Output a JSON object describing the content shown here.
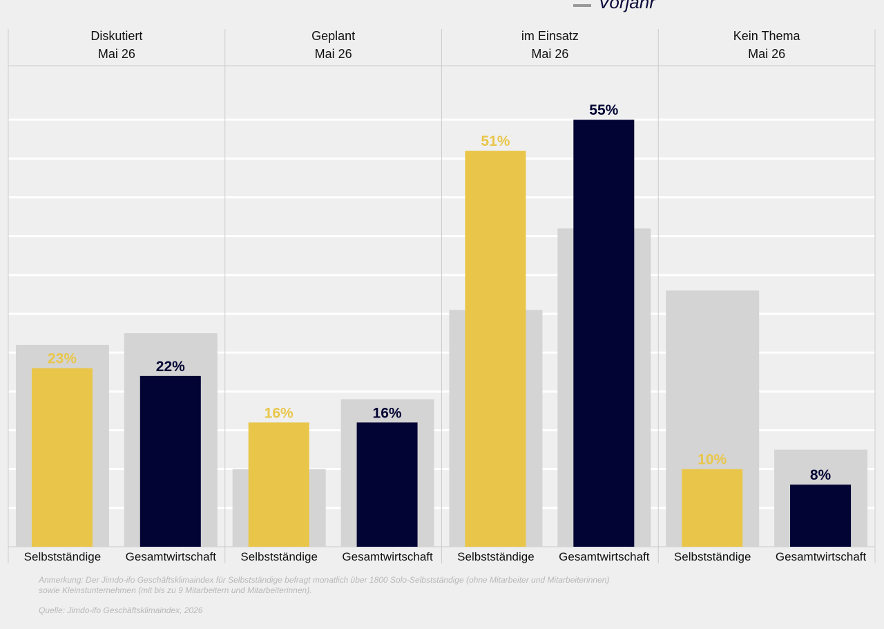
{
  "legend": {
    "previous_year_label": "Vorjahr"
  },
  "colors": {
    "selbststaendige": "#e9c649",
    "gesamtwirtschaft": "#020433",
    "vorjahr": "#d4d4d4",
    "background": "#efefef",
    "grid": "#ffffff"
  },
  "notes": {
    "line1": "Anmerkung: Der Jimdo-ifo Geschäftsklimaindex für Selbstständige befragt monatlich über 1800 Solo-Selbstständige (ohne Mitarbeiter und Mitarbeiterinnen)",
    "line2": "sowie Kleinstunternehmen (mit bis zu 9 Mitarbeitern und Mitarbeiterinnen).",
    "source": "Quelle: Jimdo-ifo Geschäftsklimaindex, 2026"
  },
  "chart_data": {
    "type": "bar",
    "ylim": [
      0,
      60
    ],
    "grid": true,
    "series_names": [
      "Selbstständige",
      "Gesamtwirtschaft"
    ],
    "panels": [
      {
        "title": "Diskutiert",
        "subtitle": "Mai 26",
        "bars": [
          {
            "category": "Selbstständige",
            "value": 23,
            "label": "23%",
            "previous": 26
          },
          {
            "category": "Gesamtwirtschaft",
            "value": 22,
            "label": "22%",
            "previous": 27.5
          }
        ]
      },
      {
        "title": "Geplant",
        "subtitle": "Mai 26",
        "bars": [
          {
            "category": "Selbstständige",
            "value": 16,
            "label": "16%",
            "previous": 10
          },
          {
            "category": "Gesamtwirtschaft",
            "value": 16,
            "label": "16%",
            "previous": 19
          }
        ]
      },
      {
        "title": "im Einsatz",
        "subtitle": "Mai 26",
        "bars": [
          {
            "category": "Selbstständige",
            "value": 51,
            "label": "51%",
            "previous": 30.5
          },
          {
            "category": "Gesamtwirtschaft",
            "value": 55,
            "label": "55%",
            "previous": 41
          }
        ]
      },
      {
        "title": "Kein Thema",
        "subtitle": "Mai 26",
        "bars": [
          {
            "category": "Selbstständige",
            "value": 10,
            "label": "10%",
            "previous": 33
          },
          {
            "category": "Gesamtwirtschaft",
            "value": 8,
            "label": "8%",
            "previous": 12.5
          }
        ]
      }
    ]
  }
}
